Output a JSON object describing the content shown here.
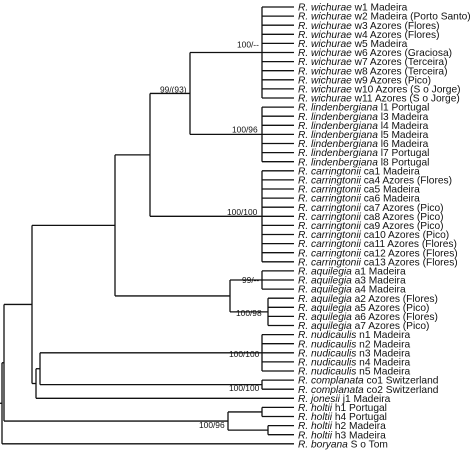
{
  "tree": {
    "leaves": [
      {
        "genus": "R. wichurae",
        "rest": " w1 Madeira"
      },
      {
        "genus": "R. wichurae",
        "rest": " w2 Madeira (Porto Santo)"
      },
      {
        "genus": "R. wichurae",
        "rest": " w3 Azores (Flores)"
      },
      {
        "genus": "R. wichurae",
        "rest": " w4 Azores (Flores)"
      },
      {
        "genus": "R. wichurae",
        "rest": " w5 Madeira"
      },
      {
        "genus": "R. wichurae",
        "rest": " w6 Azores (Graciosa)"
      },
      {
        "genus": "R. wichurae",
        "rest": " w7 Azores (Terceira)"
      },
      {
        "genus": "R. wichurae",
        "rest": " w8 Azores (Terceira)"
      },
      {
        "genus": "R. wichurae",
        "rest": " w9 Azores (Pico)"
      },
      {
        "genus": "R. wichurae",
        "rest": " w10 Azores (S  o Jorge)"
      },
      {
        "genus": "R. wichurae",
        "rest": " w11 Azores (S  o Jorge)"
      },
      {
        "genus": "R. lindenbergiana",
        "rest": " l1 Portugal"
      },
      {
        "genus": "R. lindenbergiana",
        "rest": " l3 Madeira"
      },
      {
        "genus": "R. lindenbergiana",
        "rest": " l4 Madeira"
      },
      {
        "genus": "R. lindenbergiana",
        "rest": " l5 Madeira"
      },
      {
        "genus": "R. lindenbergiana",
        "rest": " l6 Madeira"
      },
      {
        "genus": "R. lindenbergiana",
        "rest": " l7 Portugal"
      },
      {
        "genus": "R. lindenbergiana",
        "rest": " l8 Portugal"
      },
      {
        "genus": "R. carringtonii",
        "rest": " ca1 Madeira"
      },
      {
        "genus": "R. carringtonii",
        "rest": " ca4 Azores (Flores)"
      },
      {
        "genus": "R. carringtonii",
        "rest": " ca5 Madeira"
      },
      {
        "genus": "R. carringtonii",
        "rest": " ca6 Madeira"
      },
      {
        "genus": "R. carringtonii",
        "rest": " ca7 Azores (Pico)"
      },
      {
        "genus": "R. carringtonii",
        "rest": " ca8 Azores (Pico)"
      },
      {
        "genus": "R. carringtonii",
        "rest": " ca9 Azores (Pico)"
      },
      {
        "genus": "R. carringtonii",
        "rest": " ca10 Azores (Pico)"
      },
      {
        "genus": "R. carringtonii",
        "rest": " ca11 Azores (Flores)"
      },
      {
        "genus": "R. carringtonii",
        "rest": " ca12 Azores (Flores)"
      },
      {
        "genus": "R. carringtonii",
        "rest": " ca13 Azores (Flores)"
      },
      {
        "genus": "R. aquilegia",
        "rest": " a1 Madeira"
      },
      {
        "genus": "R. aquilegia",
        "rest": " a3 Madeira"
      },
      {
        "genus": "R. aquilegia",
        "rest": " a4 Madeira"
      },
      {
        "genus": "R. aquilegia",
        "rest": " a2 Azores (Flores)"
      },
      {
        "genus": "R. aquilegia",
        "rest": " a5 Azores (Pico)"
      },
      {
        "genus": "R. aquilegia",
        "rest": " a6 Azores (Flores)"
      },
      {
        "genus": "R. aquilegia",
        "rest": " a7 Azores (Pico)"
      },
      {
        "genus": "R. nudicaulis",
        "rest": " n1 Madeira"
      },
      {
        "genus": "R. nudicaulis",
        "rest": " n2 Madeira"
      },
      {
        "genus": "R. nudicaulis",
        "rest": " n3 Madeira"
      },
      {
        "genus": "R. nudicaulis",
        "rest": " n4 Madeira"
      },
      {
        "genus": "R. nudicaulis",
        "rest": " n5 Madeira"
      },
      {
        "genus": "R. complanata",
        "rest": " co1 Switzerland"
      },
      {
        "genus": "R. complanata",
        "rest": " co2 Switzerland"
      },
      {
        "genus": "R. jonesii",
        "rest": " j1 Madeira"
      },
      {
        "genus": "R. holtii",
        "rest": " h1 Portugal"
      },
      {
        "genus": "R. holtii",
        "rest": " h4 Portugal"
      },
      {
        "genus": "R. holtii",
        "rest": " h2 Madeira"
      },
      {
        "genus": "R. holtii",
        "rest": " h3 Madeira"
      },
      {
        "genus": "R. boryana",
        "rest": " S  o Tom"
      }
    ],
    "support_values": {
      "wichurae_clade": "100/--",
      "wichurae_lindenbergiana": "99/(93)",
      "lindenbergiana_clade": "100/96",
      "carringtonii_clade": "100/100",
      "aquilegia_madeira": "99/--",
      "aquilegia_clade": "100/98",
      "nudicaulis_clade": "100/100",
      "complanata_clade": "100/100",
      "holtii_clade": "100/96"
    }
  }
}
